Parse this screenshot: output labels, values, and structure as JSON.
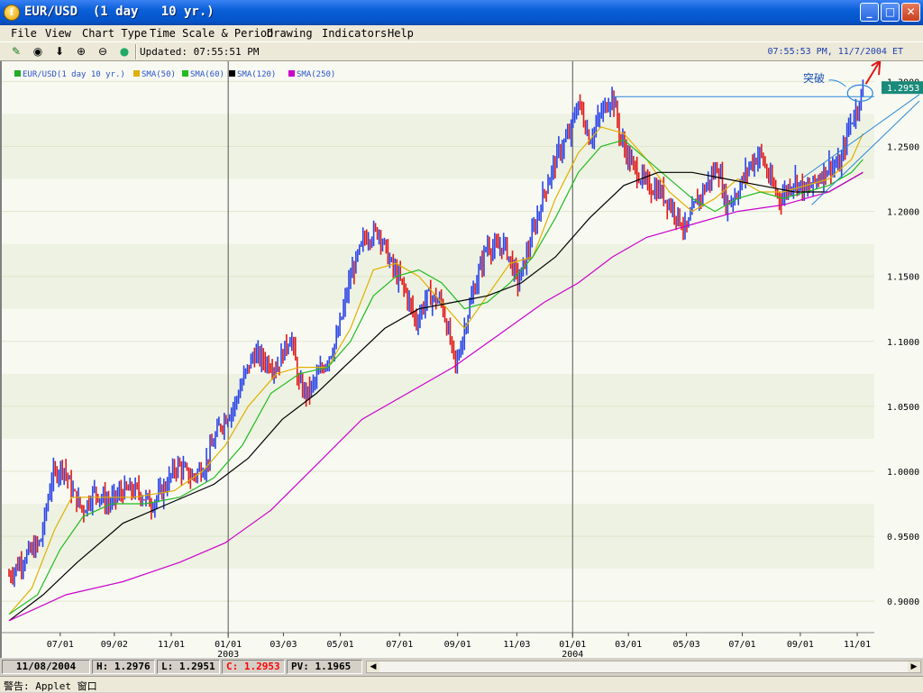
{
  "window": {
    "title": "EUR/USD  (1 day   10 yr.)",
    "icon_glyph": "f",
    "minimize_glyph": "_",
    "maximize_glyph": "□",
    "close_glyph": "✕"
  },
  "menu": [
    "File",
    "View",
    "Chart Type",
    "Time Scale & Period",
    "Drawing",
    "Indicators",
    "Help"
  ],
  "toolbar": {
    "updated_label": "Updated: 07:55:51 PM",
    "clock": "07:55:53 PM, 11/7/2004 ET",
    "icons": [
      "pen-icon",
      "target-icon",
      "arrow-down-icon",
      "zoom-in-icon",
      "zoom-out-icon",
      "globe-icon"
    ],
    "icon_glyphs": [
      "✎",
      "◉",
      "⬇",
      "⊕",
      "⊖",
      "●"
    ]
  },
  "status": {
    "date": "11/08/2004",
    "high": "H: 1.2976",
    "low": "L: 1.2951",
    "close": "C: 1.2953",
    "pv": "PV: 1.1965",
    "close_color": "#ff0000",
    "scroll_left_glyph": "◀",
    "scroll_right_glyph": "▶"
  },
  "bottombar": {
    "warning": "警告: Applet 窗口"
  },
  "chart_data": {
    "type": "line",
    "legend": [
      {
        "label": "EUR/USD(1 day  10 yr.)",
        "color": "#22aa22"
      },
      {
        "label": "SMA(50)",
        "color": "#e0b000"
      },
      {
        "label": "SMA(60)",
        "color": "#22bb22"
      },
      {
        "label": "SMA(120)",
        "color": "#000000"
      },
      {
        "label": "SMA(250)",
        "color": "#cc00cc"
      }
    ],
    "ylim": [
      0.88,
      1.31
    ],
    "y_ticks": [
      "0.9000",
      "0.9500",
      "1.0000",
      "1.0500",
      "1.1000",
      "1.1500",
      "1.2000",
      "1.2500",
      "1.3000"
    ],
    "x_ticks": [
      {
        "label": "07/01",
        "t": 0.09
      },
      {
        "label": "09/02",
        "t": 0.185
      },
      {
        "label": "11/01",
        "t": 0.285
      },
      {
        "label": "01/01",
        "t": 0.385,
        "year": "2003"
      },
      {
        "label": "03/03",
        "t": 0.482
      },
      {
        "label": "05/01",
        "t": 0.582
      },
      {
        "label": "07/01",
        "t": 0.686
      },
      {
        "label": "09/01",
        "t": 0.788
      },
      {
        "label": "11/03",
        "t": 0.892
      },
      {
        "label": "01/01",
        "t": 0.99,
        "year": "2004"
      },
      {
        "label": "03/01",
        "t": 1.088
      },
      {
        "label": "05/03",
        "t": 1.19
      },
      {
        "label": "07/01",
        "t": 1.288
      },
      {
        "label": "09/01",
        "t": 1.39
      },
      {
        "label": "11/01",
        "t": 1.49
      }
    ],
    "year_dividers": [
      0.385,
      0.99
    ],
    "series": [
      {
        "name": "EUR/USD(1 day  10 yr.)",
        "values": [
          [
            0.0,
            0.92
          ],
          [
            0.03,
            0.935
          ],
          [
            0.055,
            0.945
          ],
          [
            0.075,
            0.995
          ],
          [
            0.095,
            1.005
          ],
          [
            0.11,
            0.985
          ],
          [
            0.13,
            0.97
          ],
          [
            0.15,
            0.985
          ],
          [
            0.175,
            0.975
          ],
          [
            0.2,
            0.985
          ],
          [
            0.225,
            0.985
          ],
          [
            0.25,
            0.975
          ],
          [
            0.27,
            0.985
          ],
          [
            0.295,
            1.005
          ],
          [
            0.32,
            0.995
          ],
          [
            0.345,
            1.005
          ],
          [
            0.37,
            1.035
          ],
          [
            0.395,
            1.05
          ],
          [
            0.415,
            1.075
          ],
          [
            0.43,
            1.09
          ],
          [
            0.45,
            1.085
          ],
          [
            0.47,
            1.08
          ],
          [
            0.495,
            1.105
          ],
          [
            0.51,
            1.065
          ],
          [
            0.525,
            1.06
          ],
          [
            0.545,
            1.075
          ],
          [
            0.575,
            1.1
          ],
          [
            0.6,
            1.15
          ],
          [
            0.625,
            1.18
          ],
          [
            0.65,
            1.185
          ],
          [
            0.67,
            1.16
          ],
          [
            0.695,
            1.14
          ],
          [
            0.715,
            1.115
          ],
          [
            0.735,
            1.135
          ],
          [
            0.76,
            1.13
          ],
          [
            0.785,
            1.08
          ],
          [
            0.805,
            1.12
          ],
          [
            0.82,
            1.145
          ],
          [
            0.84,
            1.175
          ],
          [
            0.855,
            1.17
          ],
          [
            0.87,
            1.175
          ],
          [
            0.895,
            1.145
          ],
          [
            0.915,
            1.175
          ],
          [
            0.94,
            1.215
          ],
          [
            0.965,
            1.245
          ],
          [
            0.985,
            1.26
          ],
          [
            1.0,
            1.285
          ],
          [
            1.02,
            1.255
          ],
          [
            1.04,
            1.275
          ],
          [
            1.06,
            1.29
          ],
          [
            1.075,
            1.255
          ],
          [
            1.095,
            1.235
          ],
          [
            1.12,
            1.22
          ],
          [
            1.145,
            1.215
          ],
          [
            1.17,
            1.2
          ],
          [
            1.19,
            1.185
          ],
          [
            1.205,
            1.205
          ],
          [
            1.225,
            1.22
          ],
          [
            1.245,
            1.235
          ],
          [
            1.26,
            1.205
          ],
          [
            1.28,
            1.215
          ],
          [
            1.3,
            1.235
          ],
          [
            1.32,
            1.245
          ],
          [
            1.335,
            1.225
          ],
          [
            1.355,
            1.21
          ],
          [
            1.38,
            1.225
          ],
          [
            1.4,
            1.215
          ],
          [
            1.42,
            1.225
          ],
          [
            1.44,
            1.235
          ],
          [
            1.46,
            1.235
          ],
          [
            1.475,
            1.265
          ],
          [
            1.49,
            1.28
          ],
          [
            1.5,
            1.2953
          ]
        ]
      },
      {
        "name": "SMA(50)",
        "values": [
          [
            0.0,
            0.89
          ],
          [
            0.04,
            0.91
          ],
          [
            0.08,
            0.955
          ],
          [
            0.11,
            0.98
          ],
          [
            0.16,
            0.98
          ],
          [
            0.22,
            0.98
          ],
          [
            0.29,
            0.985
          ],
          [
            0.34,
            1.0
          ],
          [
            0.38,
            1.02
          ],
          [
            0.42,
            1.05
          ],
          [
            0.47,
            1.075
          ],
          [
            0.51,
            1.08
          ],
          [
            0.56,
            1.08
          ],
          [
            0.6,
            1.11
          ],
          [
            0.64,
            1.155
          ],
          [
            0.68,
            1.16
          ],
          [
            0.72,
            1.15
          ],
          [
            0.76,
            1.13
          ],
          [
            0.8,
            1.11
          ],
          [
            0.84,
            1.135
          ],
          [
            0.88,
            1.16
          ],
          [
            0.92,
            1.165
          ],
          [
            0.96,
            1.21
          ],
          [
            1.0,
            1.245
          ],
          [
            1.04,
            1.265
          ],
          [
            1.08,
            1.26
          ],
          [
            1.12,
            1.24
          ],
          [
            1.16,
            1.215
          ],
          [
            1.2,
            1.2
          ],
          [
            1.24,
            1.21
          ],
          [
            1.28,
            1.225
          ],
          [
            1.32,
            1.215
          ],
          [
            1.36,
            1.215
          ],
          [
            1.4,
            1.22
          ],
          [
            1.44,
            1.225
          ],
          [
            1.48,
            1.24
          ],
          [
            1.5,
            1.26
          ]
        ]
      },
      {
        "name": "SMA(60)",
        "values": [
          [
            0.0,
            0.89
          ],
          [
            0.05,
            0.905
          ],
          [
            0.09,
            0.94
          ],
          [
            0.13,
            0.965
          ],
          [
            0.18,
            0.975
          ],
          [
            0.24,
            0.975
          ],
          [
            0.3,
            0.98
          ],
          [
            0.36,
            0.995
          ],
          [
            0.41,
            1.02
          ],
          [
            0.46,
            1.06
          ],
          [
            0.51,
            1.075
          ],
          [
            0.56,
            1.08
          ],
          [
            0.6,
            1.1
          ],
          [
            0.64,
            1.135
          ],
          [
            0.68,
            1.15
          ],
          [
            0.72,
            1.155
          ],
          [
            0.76,
            1.145
          ],
          [
            0.8,
            1.125
          ],
          [
            0.84,
            1.13
          ],
          [
            0.88,
            1.145
          ],
          [
            0.92,
            1.165
          ],
          [
            0.96,
            1.195
          ],
          [
            1.0,
            1.23
          ],
          [
            1.04,
            1.25
          ],
          [
            1.08,
            1.255
          ],
          [
            1.12,
            1.24
          ],
          [
            1.16,
            1.225
          ],
          [
            1.2,
            1.21
          ],
          [
            1.24,
            1.2
          ],
          [
            1.28,
            1.21
          ],
          [
            1.32,
            1.215
          ],
          [
            1.36,
            1.21
          ],
          [
            1.4,
            1.215
          ],
          [
            1.44,
            1.22
          ],
          [
            1.48,
            1.23
          ],
          [
            1.5,
            1.24
          ]
        ]
      },
      {
        "name": "SMA(120)",
        "values": [
          [
            0.0,
            0.885
          ],
          [
            0.06,
            0.905
          ],
          [
            0.12,
            0.93
          ],
          [
            0.2,
            0.96
          ],
          [
            0.28,
            0.975
          ],
          [
            0.36,
            0.99
          ],
          [
            0.42,
            1.01
          ],
          [
            0.48,
            1.04
          ],
          [
            0.54,
            1.06
          ],
          [
            0.6,
            1.085
          ],
          [
            0.66,
            1.11
          ],
          [
            0.72,
            1.125
          ],
          [
            0.78,
            1.13
          ],
          [
            0.84,
            1.135
          ],
          [
            0.9,
            1.145
          ],
          [
            0.96,
            1.165
          ],
          [
            1.02,
            1.195
          ],
          [
            1.08,
            1.22
          ],
          [
            1.14,
            1.23
          ],
          [
            1.2,
            1.23
          ],
          [
            1.26,
            1.225
          ],
          [
            1.32,
            1.22
          ],
          [
            1.38,
            1.215
          ],
          [
            1.44,
            1.215
          ],
          [
            1.5,
            1.23
          ]
        ]
      },
      {
        "name": "SMA(250)",
        "values": [
          [
            0.0,
            0.885
          ],
          [
            0.1,
            0.905
          ],
          [
            0.2,
            0.915
          ],
          [
            0.3,
            0.93
          ],
          [
            0.38,
            0.945
          ],
          [
            0.46,
            0.97
          ],
          [
            0.54,
            1.005
          ],
          [
            0.62,
            1.04
          ],
          [
            0.7,
            1.06
          ],
          [
            0.78,
            1.08
          ],
          [
            0.86,
            1.105
          ],
          [
            0.94,
            1.13
          ],
          [
            1.0,
            1.145
          ],
          [
            1.06,
            1.165
          ],
          [
            1.12,
            1.18
          ],
          [
            1.2,
            1.19
          ],
          [
            1.28,
            1.2
          ],
          [
            1.36,
            1.205
          ],
          [
            1.44,
            1.215
          ],
          [
            1.5,
            1.23
          ]
        ]
      }
    ],
    "annotations": {
      "breakout_text": "突破",
      "current_price": "1.2953",
      "resistance_level": 1.2883,
      "current_price_color": "#1a8a7a"
    },
    "grid": true
  }
}
